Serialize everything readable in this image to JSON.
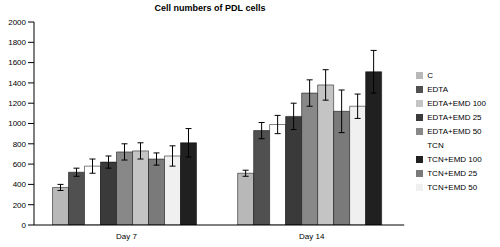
{
  "chart_data": {
    "type": "bar",
    "title": "Cell numbers of PDL cells",
    "categories": [
      "Day 7",
      "Day 14"
    ],
    "series": [
      {
        "name": "C",
        "color": "#b8b8b8",
        "values": [
          370,
          510
        ],
        "errors": [
          30,
          30
        ]
      },
      {
        "name": "EDTA",
        "color": "#505050",
        "values": [
          520,
          930
        ],
        "errors": [
          40,
          80
        ]
      },
      {
        "name": "TCN",
        "color": "#ffffff",
        "values": [
          580,
          990
        ],
        "errors": [
          70,
          90
        ]
      },
      {
        "name": "EDTA+EMD 25",
        "color": "#3a3a3a",
        "values": [
          620,
          1070
        ],
        "errors": [
          60,
          130
        ]
      },
      {
        "name": "EDTA+EMD 50",
        "color": "#888888",
        "values": [
          720,
          1300
        ],
        "errors": [
          80,
          130
        ]
      },
      {
        "name": "EDTA+EMD 100",
        "color": "#c4c4c4",
        "values": [
          730,
          1380
        ],
        "errors": [
          80,
          150
        ]
      },
      {
        "name": "TCN+EMD 25",
        "color": "#7a7a7a",
        "values": [
          650,
          1120
        ],
        "errors": [
          60,
          210
        ]
      },
      {
        "name": "TCN+EMD 50",
        "color": "#f0f0f0",
        "values": [
          680,
          1170
        ],
        "errors": [
          100,
          120
        ]
      },
      {
        "name": "TCN+EMD 100",
        "color": "#202020",
        "values": [
          810,
          1510
        ],
        "errors": [
          140,
          210
        ]
      }
    ],
    "ylim": [
      0,
      2000
    ],
    "yticks": [
      0,
      200,
      400,
      600,
      800,
      1000,
      1200,
      1400,
      1600,
      1800,
      2000
    ],
    "grid": false,
    "legend": "right"
  }
}
